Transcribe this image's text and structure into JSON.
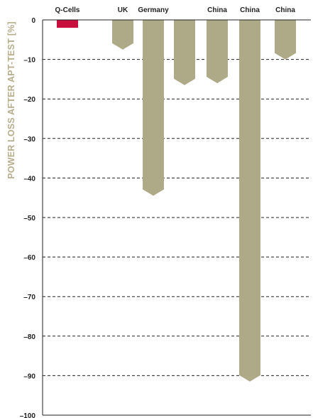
{
  "chart_data": {
    "type": "bar",
    "categories": [
      "Q-Cells",
      "UK",
      "Germany",
      "Germany",
      "China",
      "China",
      "China"
    ],
    "category_labels": [
      "Q-Cells",
      "UK",
      "Germany",
      "",
      "China",
      "China",
      "China"
    ],
    "values": [
      -2,
      -7.5,
      -44.5,
      -16.5,
      -16,
      -91.5,
      -10
    ],
    "ylabel": "POWER LOSS AFTER APT-TEST [%]",
    "ylim": [
      -100,
      0
    ],
    "yticks": [
      0,
      -10,
      -20,
      -30,
      -40,
      -50,
      -60,
      -70,
      -80,
      -90,
      -100
    ],
    "ytick_labels": [
      "0",
      "–10",
      "–20",
      "–30",
      "–40",
      "–50",
      "–60",
      "–70",
      "–80",
      "–90",
      "–100"
    ],
    "grid": true,
    "colors": {
      "highlight": "#c8103e",
      "bars": "#aea986",
      "grid": "#222222"
    }
  }
}
